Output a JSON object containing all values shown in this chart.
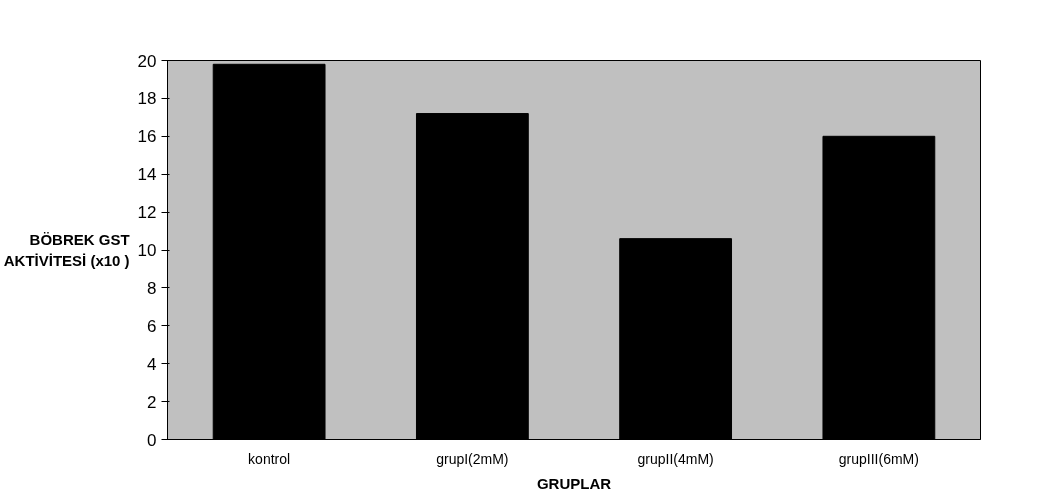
{
  "chart_data": {
    "type": "bar",
    "xlabel": "GRUPLAR",
    "ylabel": "BÖBREK GST\nAKTİVİTESİ (x10 )",
    "categories": [
      "kontrol",
      "grupI(2mM)",
      "grupII(4mM)",
      "grupIII(6mM)"
    ],
    "values": [
      19.8,
      17.2,
      10.6,
      16.0
    ],
    "color": "#000000",
    "ylim": [
      0,
      20
    ],
    "yticks": [
      0,
      2,
      4,
      6,
      8,
      10,
      12,
      14,
      16,
      18,
      20
    ],
    "grid": false
  }
}
